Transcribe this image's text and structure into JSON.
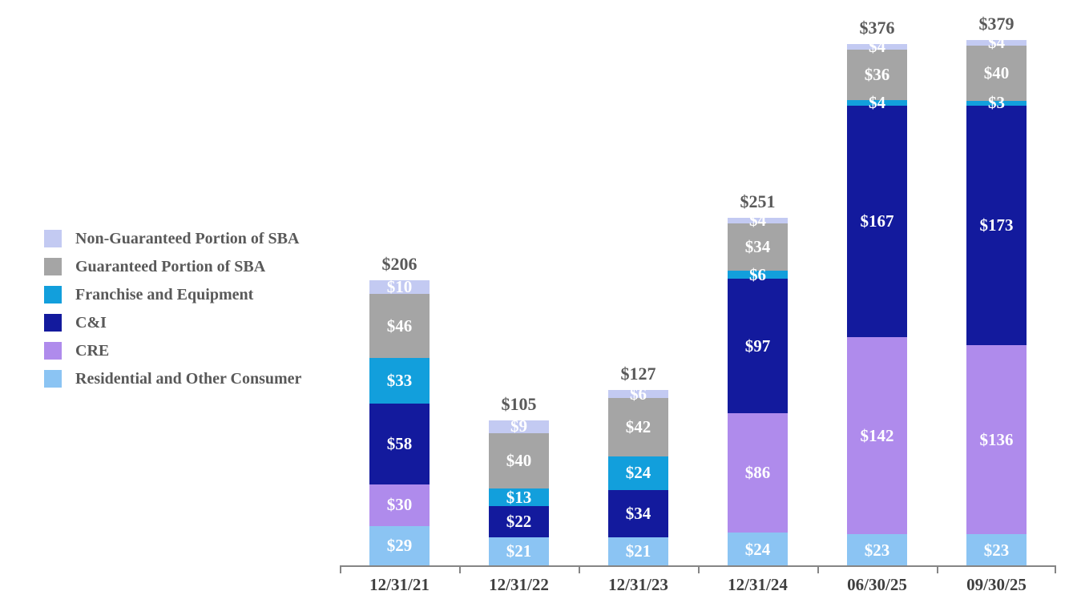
{
  "chart_data": {
    "type": "bar",
    "stacked": true,
    "title": "",
    "xlabel": "",
    "ylabel": "",
    "value_prefix": "$",
    "categories": [
      "12/31/21",
      "12/31/22",
      "12/31/23",
      "12/31/24",
      "06/30/25",
      "09/30/25"
    ],
    "series": [
      {
        "name": "Residential and Other Consumer",
        "color": "#8BC4F3",
        "values": [
          29,
          21,
          21,
          24,
          23,
          23
        ]
      },
      {
        "name": "CRE",
        "color": "#AF8BEC",
        "values": [
          30,
          0,
          0,
          86,
          142,
          136
        ]
      },
      {
        "name": "C&I",
        "color": "#131A9D",
        "values": [
          58,
          22,
          34,
          97,
          167,
          173
        ]
      },
      {
        "name": "Franchise and Equipment",
        "color": "#129FDC",
        "values": [
          33,
          13,
          24,
          6,
          4,
          3
        ]
      },
      {
        "name": "Guaranteed Portion of SBA",
        "color": "#A5A5A5",
        "values": [
          46,
          40,
          42,
          34,
          36,
          40
        ]
      },
      {
        "name": "Non-Guaranteed Portion of SBA",
        "color": "#C3CAF2",
        "values": [
          10,
          9,
          6,
          4,
          4,
          4
        ]
      }
    ],
    "stack_order": "bottom-to-top",
    "totals": [
      206,
      105,
      127,
      251,
      376,
      379
    ],
    "legend_position": "left",
    "legend_order_top_to_bottom": [
      "Non-Guaranteed Portion of SBA",
      "Guaranteed Portion of SBA",
      "Franchise and Equipment",
      "C&I",
      "CRE",
      "Residential and Other Consumer"
    ],
    "grid": false,
    "colors": {
      "total_label": "#595959",
      "legend_text": "#595959",
      "axis_text": "#3F3F3F",
      "axis_line": "#858585",
      "segment_label": "#FFFFFF",
      "background": "#FFFFFF"
    }
  }
}
